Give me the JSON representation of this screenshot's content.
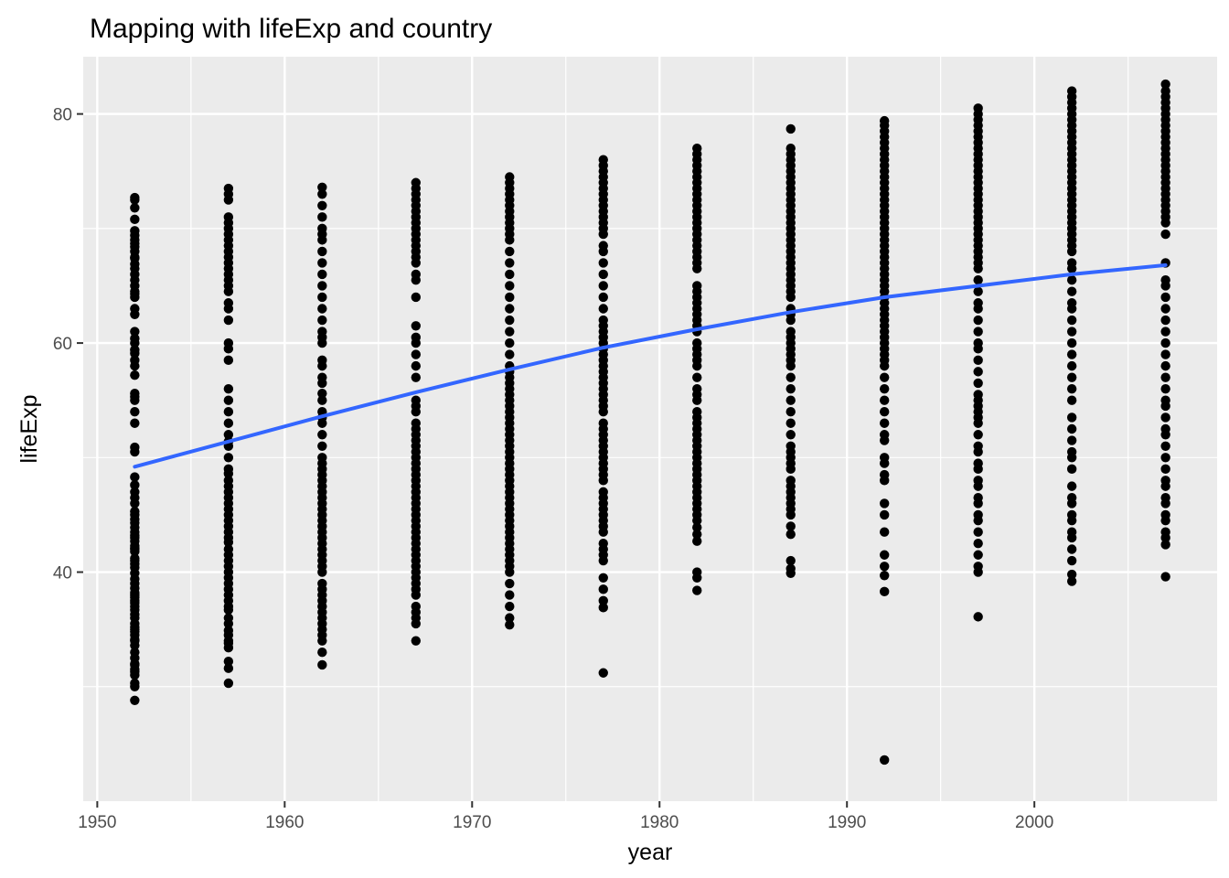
{
  "chart_data": {
    "type": "scatter",
    "title": "Mapping with lifeExp and country",
    "xlabel": "year",
    "ylabel": "lifeExp",
    "xlim": [
      1949.25,
      2009.75
    ],
    "ylim": [
      20,
      85
    ],
    "x_ticks": [
      1950,
      1960,
      1970,
      1980,
      1990,
      2000
    ],
    "x_tick_labels": [
      "1950",
      "1960",
      "1970",
      "1980",
      "1990",
      "2000"
    ],
    "y_ticks": [
      40,
      60,
      80
    ],
    "y_tick_labels": [
      "40",
      "60",
      "80"
    ],
    "grid": true,
    "legend": "none",
    "colors": {
      "panel_background": "#ebebeb",
      "grid_line": "#ffffff",
      "point": "#000000",
      "smooth_line": "#3366ff"
    },
    "series": [
      {
        "type": "points",
        "points_by_year": [
          {
            "x": 1952,
            "y": [
              28.8,
              30.0,
              30.3,
              31.0,
              31.3,
              31.5,
              31.9,
              32.0,
              32.5,
              33.0,
              33.6,
              34.0,
              34.1,
              34.5,
              34.8,
              35.0,
              35.2,
              35.5,
              36.0,
              36.3,
              36.7,
              37.0,
              37.3,
              37.5,
              37.8,
              38.0,
              38.2,
              38.6,
              39.0,
              39.4,
              39.9,
              40.4,
              40.7,
              41.0,
              41.2,
              41.8,
              42.0,
              42.1,
              42.3,
              42.7,
              43.0,
              43.2,
              43.5,
              43.9,
              44.3,
              44.6,
              45.0,
              45.3,
              46.0,
              46.5,
              47.0,
              47.6,
              48.3,
              50.5,
              50.9,
              53.0,
              54.0,
              55.0,
              55.3,
              55.6,
              57.2,
              58.0,
              58.5,
              59.1,
              59.4,
              60.0,
              60.4,
              61.0,
              62.5,
              63.0,
              64.0,
              64.3,
              64.5,
              65.0,
              65.5,
              66.0,
              66.5,
              66.9,
              67.4,
              67.5,
              68.0,
              68.4,
              68.7,
              69.0,
              69.4,
              69.8,
              70.8,
              71.8,
              72.5,
              72.7
            ]
          },
          {
            "x": 1957,
            "y": [
              30.3,
              31.6,
              32.2,
              33.4,
              33.8,
              34.0,
              34.5,
              34.9,
              35.5,
              36.0,
              36.7,
              37.0,
              37.5,
              38.0,
              38.5,
              39.0,
              39.5,
              40.0,
              40.5,
              41.0,
              41.5,
              42.0,
              42.6,
              43.0,
              43.5,
              44.0,
              44.5,
              45.0,
              45.5,
              46.0,
              46.5,
              47.0,
              47.5,
              48.0,
              48.6,
              49.0,
              50.0,
              51.0,
              51.4,
              52.0,
              53.0,
              54.0,
              55.0,
              56.0,
              58.5,
              59.5,
              60.0,
              62.0,
              63.0,
              63.5,
              64.5,
              65.0,
              65.5,
              66.0,
              66.5,
              67.0,
              67.5,
              68.0,
              68.5,
              69.0,
              69.5,
              70.0,
              70.5,
              71.0,
              72.5,
              73.0,
              73.5
            ]
          },
          {
            "x": 1962,
            "y": [
              31.9,
              33.0,
              34.0,
              34.5,
              35.0,
              35.5,
              36.0,
              36.5,
              37.0,
              37.5,
              38.0,
              38.5,
              39.0,
              40.0,
              40.5,
              41.0,
              41.5,
              42.0,
              42.5,
              43.0,
              43.5,
              44.0,
              44.5,
              45.0,
              45.5,
              46.0,
              46.5,
              47.0,
              47.5,
              48.0,
              48.5,
              49.0,
              49.5,
              50.0,
              51.0,
              52.0,
              53.0,
              53.5,
              54.0,
              55.0,
              55.6,
              56.5,
              57.0,
              58.0,
              58.5,
              60.0,
              60.5,
              61.0,
              62.0,
              63.0,
              64.0,
              65.0,
              66.0,
              67.0,
              68.0,
              69.0,
              69.5,
              70.0,
              71.0,
              72.0,
              73.0,
              73.6
            ]
          },
          {
            "x": 1967,
            "y": [
              34.0,
              35.5,
              36.0,
              36.5,
              37.0,
              38.0,
              38.5,
              39.0,
              39.5,
              40.0,
              40.5,
              41.0,
              41.5,
              42.0,
              42.5,
              43.0,
              43.5,
              44.0,
              44.5,
              45.0,
              45.5,
              46.0,
              46.5,
              47.0,
              47.5,
              48.0,
              48.5,
              49.0,
              49.5,
              50.0,
              50.5,
              51.0,
              51.5,
              52.0,
              52.5,
              53.0,
              54.0,
              54.5,
              55.0,
              57.0,
              58.0,
              59.0,
              60.0,
              60.5,
              61.5,
              64.0,
              65.5,
              66.0,
              67.0,
              67.5,
              68.0,
              68.5,
              69.0,
              69.5,
              70.0,
              70.5,
              71.0,
              71.5,
              72.0,
              72.5,
              73.0,
              73.5,
              74.0
            ]
          },
          {
            "x": 1972,
            "y": [
              35.4,
              36.0,
              37.0,
              38.0,
              39.0,
              40.0,
              40.5,
              41.0,
              41.5,
              42.0,
              42.5,
              43.0,
              43.5,
              44.0,
              44.5,
              45.0,
              45.5,
              46.0,
              46.5,
              47.0,
              47.5,
              48.0,
              48.5,
              49.0,
              49.5,
              50.0,
              50.5,
              51.0,
              51.5,
              52.0,
              52.5,
              53.0,
              53.5,
              54.0,
              54.5,
              55.0,
              55.5,
              56.0,
              56.5,
              57.0,
              57.5,
              58.0,
              59.0,
              60.0,
              61.0,
              62.0,
              63.0,
              64.0,
              65.0,
              66.0,
              67.0,
              68.0,
              69.0,
              69.5,
              70.0,
              70.5,
              71.0,
              71.5,
              72.0,
              72.5,
              73.0,
              73.5,
              74.0,
              74.5
            ]
          },
          {
            "x": 1977,
            "y": [
              31.2,
              36.9,
              37.5,
              38.5,
              39.5,
              41.0,
              41.5,
              42.0,
              42.5,
              43.5,
              44.0,
              44.5,
              45.0,
              45.5,
              46.0,
              46.5,
              47.0,
              48.0,
              48.5,
              49.0,
              49.5,
              50.0,
              50.5,
              51.0,
              51.5,
              52.0,
              52.5,
              53.0,
              54.0,
              54.5,
              55.0,
              55.5,
              56.0,
              56.5,
              57.0,
              57.5,
              58.0,
              58.5,
              59.0,
              59.5,
              60.0,
              60.5,
              61.0,
              61.5,
              62.0,
              63.0,
              64.0,
              65.0,
              66.0,
              67.0,
              68.0,
              68.5,
              69.5,
              70.0,
              70.5,
              71.0,
              71.5,
              72.0,
              72.5,
              73.0,
              73.5,
              74.0,
              74.5,
              75.0,
              75.5,
              76.0
            ]
          },
          {
            "x": 1982,
            "y": [
              38.4,
              39.5,
              40.0,
              42.7,
              43.3,
              43.9,
              44.5,
              45.0,
              45.5,
              46.0,
              46.5,
              47.0,
              47.5,
              48.0,
              48.5,
              49.0,
              49.5,
              50.0,
              50.5,
              51.0,
              51.5,
              52.0,
              52.5,
              53.0,
              53.5,
              54.0,
              55.0,
              55.5,
              56.0,
              57.0,
              58.0,
              58.5,
              59.0,
              59.5,
              60.0,
              61.0,
              61.5,
              62.0,
              62.5,
              63.0,
              63.5,
              64.0,
              64.5,
              65.0,
              66.5,
              67.0,
              67.5,
              68.0,
              68.5,
              69.0,
              69.5,
              70.0,
              70.5,
              71.0,
              71.5,
              72.0,
              72.5,
              73.0,
              73.5,
              74.0,
              74.5,
              75.0,
              75.5,
              76.0,
              76.5,
              77.0
            ]
          },
          {
            "x": 1987,
            "y": [
              39.9,
              40.3,
              41.0,
              43.3,
              44.0,
              45.0,
              45.5,
              46.0,
              46.5,
              47.0,
              47.5,
              48.0,
              49.0,
              49.5,
              50.0,
              50.5,
              51.0,
              52.0,
              53.0,
              54.0,
              55.0,
              56.0,
              57.0,
              58.0,
              58.5,
              59.0,
              59.5,
              60.0,
              60.5,
              61.0,
              62.0,
              62.5,
              63.0,
              64.0,
              64.5,
              65.0,
              65.5,
              66.0,
              66.5,
              67.0,
              67.5,
              68.0,
              68.5,
              69.0,
              69.5,
              70.0,
              70.5,
              71.0,
              71.5,
              72.0,
              72.5,
              73.0,
              73.5,
              74.0,
              74.5,
              75.0,
              75.5,
              76.0,
              76.5,
              77.0,
              78.7
            ]
          },
          {
            "x": 1992,
            "y": [
              23.6,
              38.3,
              39.7,
              40.5,
              41.5,
              43.5,
              45.0,
              46.0,
              48.0,
              48.5,
              49.5,
              50.0,
              51.5,
              52.0,
              53.0,
              54.0,
              55.0,
              56.0,
              57.0,
              58.0,
              58.5,
              59.0,
              59.5,
              60.0,
              60.5,
              61.0,
              61.5,
              62.0,
              62.5,
              63.0,
              63.5,
              64.0,
              64.5,
              65.0,
              65.5,
              66.0,
              66.5,
              67.0,
              67.5,
              68.0,
              68.5,
              69.0,
              69.5,
              70.0,
              70.5,
              71.0,
              71.5,
              72.0,
              72.5,
              73.0,
              73.5,
              74.0,
              74.5,
              75.0,
              75.5,
              76.0,
              76.5,
              77.0,
              77.5,
              78.0,
              78.5,
              79.0,
              79.4
            ]
          },
          {
            "x": 1997,
            "y": [
              36.1,
              40.0,
              40.5,
              41.5,
              42.5,
              43.5,
              44.5,
              45.0,
              46.0,
              46.5,
              47.5,
              48.0,
              49.0,
              49.5,
              50.5,
              51.0,
              52.0,
              53.0,
              53.5,
              54.0,
              54.5,
              55.0,
              55.5,
              56.5,
              57.5,
              58.5,
              59.5,
              60.0,
              61.0,
              62.0,
              63.0,
              63.5,
              64.5,
              65.5,
              66.5,
              67.0,
              67.5,
              68.0,
              68.5,
              69.0,
              69.5,
              70.0,
              70.5,
              71.0,
              71.5,
              72.0,
              72.5,
              73.0,
              73.5,
              74.0,
              74.5,
              75.0,
              75.5,
              76.0,
              76.5,
              77.0,
              77.5,
              78.0,
              78.5,
              79.0,
              79.5,
              80.0,
              80.5
            ]
          },
          {
            "x": 2002,
            "y": [
              39.2,
              39.8,
              41.0,
              42.0,
              43.0,
              43.5,
              44.5,
              45.0,
              46.0,
              46.5,
              47.5,
              49.0,
              50.0,
              50.5,
              51.5,
              52.5,
              53.5,
              55.0,
              56.0,
              57.0,
              58.0,
              59.0,
              60.0,
              61.0,
              62.0,
              63.0,
              63.5,
              64.5,
              65.5,
              66.5,
              67.0,
              68.0,
              68.5,
              69.0,
              69.5,
              70.0,
              70.5,
              71.0,
              71.5,
              72.0,
              72.5,
              73.0,
              73.5,
              74.0,
              74.5,
              75.0,
              75.5,
              76.0,
              76.5,
              77.0,
              77.5,
              78.0,
              78.5,
              79.0,
              79.5,
              80.0,
              80.5,
              81.0,
              81.5,
              82.0
            ]
          },
          {
            "x": 2007,
            "y": [
              39.6,
              42.4,
              43.0,
              43.5,
              44.5,
              45.0,
              46.0,
              46.5,
              47.5,
              48.0,
              49.0,
              50.0,
              51.0,
              52.0,
              52.5,
              53.5,
              54.5,
              55.0,
              56.0,
              57.0,
              58.0,
              59.0,
              60.0,
              61.0,
              62.0,
              63.0,
              64.0,
              65.0,
              65.5,
              67.0,
              69.5,
              70.5,
              71.0,
              71.5,
              72.0,
              72.5,
              73.0,
              73.5,
              74.0,
              74.5,
              75.0,
              75.5,
              76.0,
              76.5,
              77.0,
              77.5,
              78.0,
              78.5,
              79.0,
              79.5,
              80.0,
              80.5,
              81.0,
              81.5,
              82.0,
              82.6
            ]
          }
        ]
      },
      {
        "type": "smooth",
        "x": [
          1952,
          1957,
          1962,
          1967,
          1972,
          1977,
          1982,
          1987,
          1992,
          1997,
          2002,
          2007
        ],
        "y": [
          49.2,
          51.4,
          53.6,
          55.7,
          57.7,
          59.6,
          61.2,
          62.7,
          64.0,
          65.0,
          66.0,
          66.8
        ]
      }
    ]
  }
}
